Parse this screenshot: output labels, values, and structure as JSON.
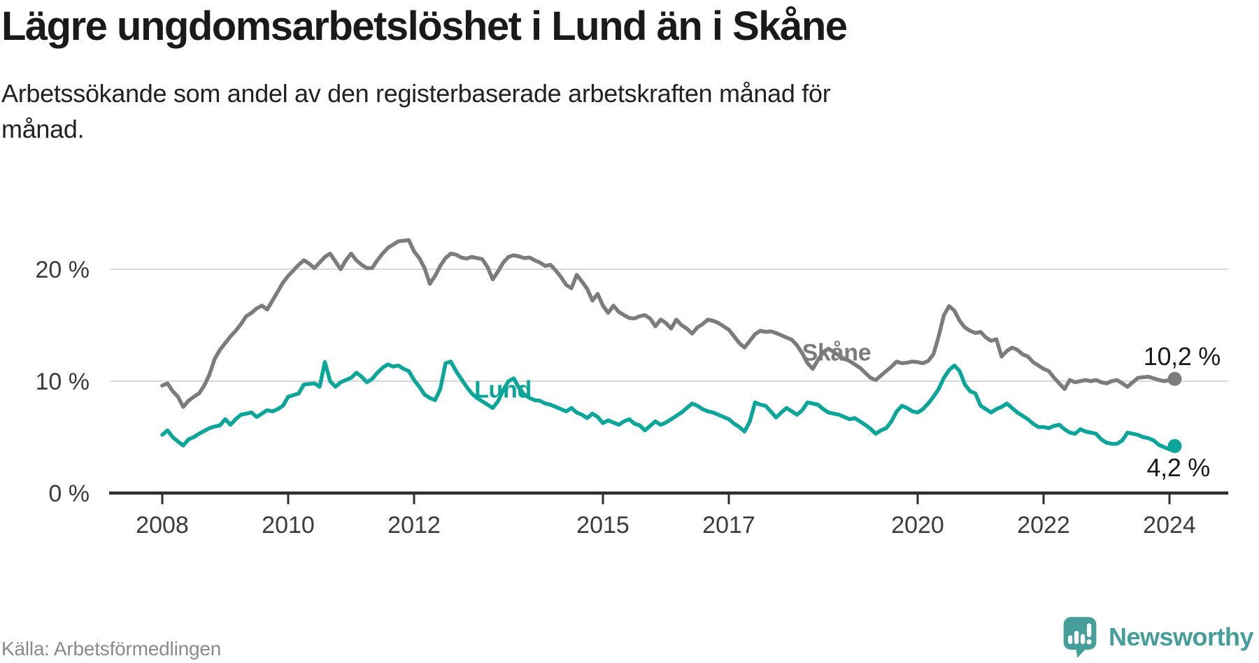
{
  "header": {
    "title": "Lägre ungdomsarbetslöshet i Lund än i Skåne",
    "subtitle_line1": "Arbetssökande som andel av den registerbaserade arbetskraften månad för",
    "subtitle_line2": "månad."
  },
  "footer": {
    "source": "Källa: Arbetsförmedlingen",
    "brand_name": "Newsworthy",
    "brand_color": "#459e99"
  },
  "chart_data": {
    "type": "line",
    "title": "Lägre ungdomsarbetslöshet i Lund än i Skåne",
    "xlabel": "",
    "ylabel": "Arbetssökande som andel av den registerbaserade arbetskraften",
    "unit": "%",
    "x_start_year": 2008,
    "x_step_months": 1,
    "x_end": "2024-02",
    "x_ticks": [
      2008,
      2010,
      2012,
      2015,
      2017,
      2020,
      2022,
      2024
    ],
    "y_ticks": [
      {
        "value": 0,
        "label": "0 %"
      },
      {
        "value": 10,
        "label": "10 %"
      },
      {
        "value": 20,
        "label": "20 %"
      }
    ],
    "ylim": [
      0,
      23.5
    ],
    "grid": "horizontal",
    "legend_position": "inline-annotations",
    "colors": {
      "grid": "#d8d8d8",
      "axis": "#2f2f2f",
      "tick_text": "#3b3b3b"
    },
    "series": [
      {
        "name": "Skåne",
        "color": "#7c7c7c",
        "end_label": "10,2 %",
        "end_value": 10.2,
        "values": [
          9.6,
          9.8,
          9.1,
          8.6,
          7.7,
          8.25,
          8.6,
          8.9,
          9.6,
          10.6,
          12,
          12.8,
          13.4,
          14,
          14.5,
          15.1,
          15.8,
          16.1,
          16.5,
          16.75,
          16.4,
          17.2,
          18,
          18.8,
          19.4,
          19.9,
          20.4,
          20.8,
          20.5,
          20.1,
          20.6,
          21.1,
          21.4,
          20.7,
          20,
          20.8,
          21.4,
          20.8,
          20.4,
          20.1,
          20.1,
          20.8,
          21.4,
          21.9,
          22.2,
          22.5,
          22.55,
          22.6,
          21.6,
          21,
          20.1,
          18.7,
          19.4,
          20.3,
          21,
          21.4,
          21.3,
          21.05,
          20.95,
          21.1,
          21,
          20.9,
          20.2,
          19.1,
          19.8,
          20.6,
          21.1,
          21.25,
          21.15,
          21,
          21.05,
          20.8,
          20.6,
          20.3,
          20.4,
          19.9,
          19.3,
          18.6,
          18.3,
          19.5,
          18.9,
          18.25,
          17.2,
          17.8,
          16.75,
          16.1,
          16.75,
          16.2,
          15.9,
          15.65,
          15.6,
          15.8,
          15.9,
          15.6,
          14.9,
          15.5,
          15.2,
          14.7,
          15.5,
          15,
          14.7,
          14.25,
          14.8,
          15.1,
          15.5,
          15.4,
          15.2,
          14.9,
          14.6,
          14,
          13.4,
          13,
          13.6,
          14.2,
          14.5,
          14.4,
          14.45,
          14.3,
          14.1,
          13.9,
          13.7,
          13.2,
          12.5,
          11.6,
          11.1,
          11.9,
          12.6,
          12.9,
          12.6,
          12.3,
          12,
          11.8,
          11.5,
          11.2,
          10.75,
          10.3,
          10.1,
          10.5,
          10.9,
          11.3,
          11.75,
          11.6,
          11.65,
          11.75,
          11.7,
          11.6,
          11.8,
          12.4,
          14,
          15.9,
          16.7,
          16.3,
          15.4,
          14.8,
          14.5,
          14.3,
          14.4,
          13.9,
          13.6,
          13.75,
          12.2,
          12.7,
          13,
          12.8,
          12.4,
          12.2,
          11.7,
          11.4,
          11.1,
          10.9,
          10.3,
          9.8,
          9.3,
          10.1,
          9.9,
          10,
          10.1,
          10,
          10.1,
          9.9,
          9.8,
          10,
          10.1,
          9.8,
          9.5,
          9.9,
          10.3,
          10.35,
          10.4,
          10.25,
          10.1,
          10,
          10.1,
          10.2
        ]
      },
      {
        "name": "Lund",
        "color": "#0ba59a",
        "end_label": "4,2 %",
        "end_value": 4.2,
        "values": [
          5.2,
          5.6,
          5,
          4.6,
          4.25,
          4.8,
          5,
          5.3,
          5.55,
          5.8,
          5.95,
          6.05,
          6.6,
          6.1,
          6.6,
          7,
          7.1,
          7.2,
          6.8,
          7.1,
          7.4,
          7.3,
          7.5,
          7.8,
          8.6,
          8.75,
          8.9,
          9.7,
          9.75,
          9.8,
          9.5,
          11.7,
          10,
          9.5,
          9.9,
          10.1,
          10.3,
          10.75,
          10.4,
          9.9,
          10.2,
          10.75,
          11.2,
          11.5,
          11.3,
          11.4,
          11.1,
          10.9,
          10.1,
          9.5,
          8.8,
          8.5,
          8.3,
          9.3,
          11.6,
          11.75,
          10.9,
          10.2,
          9.5,
          8.9,
          8.5,
          8.2,
          7.9,
          7.6,
          8.2,
          9.2,
          10,
          10.25,
          9.4,
          8.8,
          8.5,
          8.3,
          8.25,
          8,
          7.9,
          7.7,
          7.5,
          7.3,
          7.6,
          7.2,
          7,
          6.7,
          7.1,
          6.8,
          6.25,
          6.5,
          6.3,
          6.1,
          6.4,
          6.6,
          6.2,
          6.05,
          5.6,
          6,
          6.4,
          6.1,
          6.3,
          6.6,
          6.9,
          7.2,
          7.6,
          8,
          7.8,
          7.5,
          7.3,
          7.2,
          7,
          6.8,
          6.6,
          6.2,
          5.9,
          5.5,
          6.4,
          8.1,
          7.9,
          7.8,
          7.3,
          6.75,
          7.2,
          7.6,
          7.3,
          7,
          7.4,
          8.1,
          8,
          7.9,
          7.5,
          7.2,
          7.1,
          7,
          6.8,
          6.6,
          6.7,
          6.4,
          6.1,
          5.75,
          5.3,
          5.6,
          5.8,
          6.4,
          7.3,
          7.8,
          7.6,
          7.3,
          7.2,
          7.5,
          8,
          8.6,
          9.3,
          10.3,
          11,
          11.4,
          10.9,
          9.7,
          9.1,
          8.9,
          7.8,
          7.5,
          7.2,
          7.5,
          7.7,
          8,
          7.6,
          7.2,
          6.9,
          6.6,
          6.2,
          5.9,
          5.9,
          5.8,
          6,
          6.1,
          5.7,
          5.4,
          5.3,
          5.7,
          5.5,
          5.4,
          5.3,
          4.8,
          4.5,
          4.4,
          4.4,
          4.7,
          5.4,
          5.3,
          5.2,
          5,
          4.9,
          4.7,
          4.3,
          4.1,
          3.9,
          4.2
        ]
      }
    ]
  }
}
